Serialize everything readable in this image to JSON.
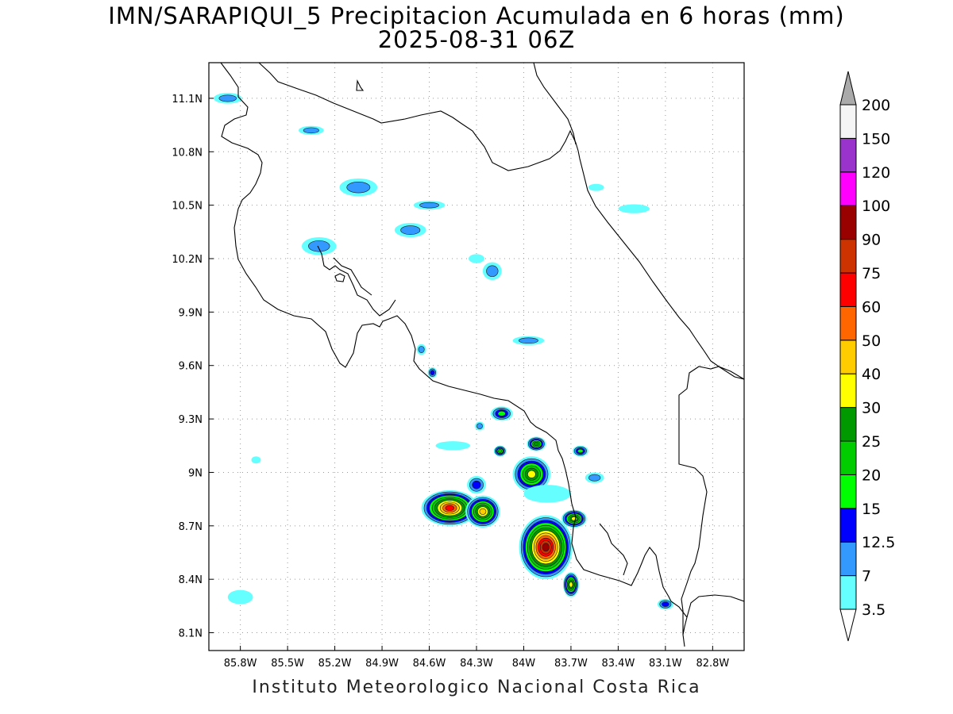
{
  "title": {
    "line1": "IMN/SARAPIQUI_5 Precipitacion Acumulada en 6 horas (mm)",
    "line2": "2025-08-31 06Z"
  },
  "credit": "Instituto Meteorologico Nacional Costa Rica",
  "map": {
    "lon_range": [
      -86.0,
      -82.6
    ],
    "lat_range": [
      8.0,
      11.3
    ],
    "grid": "dotted",
    "x_ticks": [
      {
        "value": -85.8,
        "label": "85.8W"
      },
      {
        "value": -85.5,
        "label": "85.5W"
      },
      {
        "value": -85.2,
        "label": "85.2W"
      },
      {
        "value": -84.9,
        "label": "84.9W"
      },
      {
        "value": -84.6,
        "label": "84.6W"
      },
      {
        "value": -84.3,
        "label": "84.3W"
      },
      {
        "value": -84.0,
        "label": "84W"
      },
      {
        "value": -83.7,
        "label": "83.7W"
      },
      {
        "value": -83.4,
        "label": "83.4W"
      },
      {
        "value": -83.1,
        "label": "83.1W"
      },
      {
        "value": -82.8,
        "label": "82.8W"
      }
    ],
    "y_ticks": [
      {
        "value": 11.1,
        "label": "11.1N"
      },
      {
        "value": 10.8,
        "label": "10.8N"
      },
      {
        "value": 10.5,
        "label": "10.5N"
      },
      {
        "value": 10.2,
        "label": "10.2N"
      },
      {
        "value": 9.9,
        "label": "9.9N"
      },
      {
        "value": 9.6,
        "label": "9.6N"
      },
      {
        "value": 9.3,
        "label": "9.3N"
      },
      {
        "value": 9.0,
        "label": "9N"
      },
      {
        "value": 8.7,
        "label": "8.7N"
      },
      {
        "value": 8.4,
        "label": "8.4N"
      },
      {
        "value": 8.1,
        "label": "8.1N"
      }
    ]
  },
  "colorbar": {
    "levels": [
      {
        "label": "3.5",
        "color": "#66ffff"
      },
      {
        "label": "7",
        "color": "#3399ff"
      },
      {
        "label": "12.5",
        "color": "#0000ff"
      },
      {
        "label": "15",
        "color": "#00ff00"
      },
      {
        "label": "20",
        "color": "#00cc00"
      },
      {
        "label": "25",
        "color": "#009900"
      },
      {
        "label": "30",
        "color": "#ffff00"
      },
      {
        "label": "40",
        "color": "#ffcc00"
      },
      {
        "label": "50",
        "color": "#ff6600"
      },
      {
        "label": "60",
        "color": "#ff0000"
      },
      {
        "label": "75",
        "color": "#cc3300"
      },
      {
        "label": "90",
        "color": "#990000"
      },
      {
        "label": "100",
        "color": "#ff00ff"
      },
      {
        "label": "120",
        "color": "#9933cc"
      },
      {
        "label": "150",
        "color": "#f5f5f5"
      },
      {
        "label": "200",
        "color": "#aaaaaa"
      }
    ]
  },
  "precip_areas": [
    {
      "lon": -85.88,
      "lat": 11.1,
      "rx": 0.09,
      "ry": 0.03,
      "mm": 7
    },
    {
      "lon": -85.35,
      "lat": 10.92,
      "rx": 0.08,
      "ry": 0.025,
      "mm": 7
    },
    {
      "lon": -85.05,
      "lat": 10.6,
      "rx": 0.12,
      "ry": 0.05,
      "mm": 7
    },
    {
      "lon": -84.6,
      "lat": 10.5,
      "rx": 0.1,
      "ry": 0.025,
      "mm": 7
    },
    {
      "lon": -84.72,
      "lat": 10.36,
      "rx": 0.1,
      "ry": 0.04,
      "mm": 7
    },
    {
      "lon": -85.3,
      "lat": 10.27,
      "rx": 0.11,
      "ry": 0.05,
      "mm": 7
    },
    {
      "lon": -84.3,
      "lat": 10.2,
      "rx": 0.05,
      "ry": 0.025,
      "mm": 3.5
    },
    {
      "lon": -84.2,
      "lat": 10.13,
      "rx": 0.06,
      "ry": 0.05,
      "mm": 7
    },
    {
      "lon": -83.97,
      "lat": 9.74,
      "rx": 0.1,
      "ry": 0.025,
      "mm": 7
    },
    {
      "lon": -83.54,
      "lat": 10.6,
      "rx": 0.05,
      "ry": 0.02,
      "mm": 3.5
    },
    {
      "lon": -83.3,
      "lat": 10.48,
      "rx": 0.1,
      "ry": 0.025,
      "mm": 3.5
    },
    {
      "lon": -84.14,
      "lat": 9.33,
      "rx": 0.07,
      "ry": 0.04,
      "mm": 15
    },
    {
      "lon": -84.28,
      "lat": 9.26,
      "rx": 0.03,
      "ry": 0.025,
      "mm": 7
    },
    {
      "lon": -84.15,
      "lat": 9.12,
      "rx": 0.04,
      "ry": 0.03,
      "mm": 20
    },
    {
      "lon": -84.45,
      "lat": 9.15,
      "rx": 0.11,
      "ry": 0.025,
      "mm": 3.5
    },
    {
      "lon": -83.92,
      "lat": 9.16,
      "rx": 0.06,
      "ry": 0.04,
      "mm": 25
    },
    {
      "lon": -83.64,
      "lat": 9.12,
      "rx": 0.05,
      "ry": 0.03,
      "mm": 15
    },
    {
      "lon": -83.95,
      "lat": 8.99,
      "rx": 0.12,
      "ry": 0.1,
      "mm": 30
    },
    {
      "lon": -84.47,
      "lat": 8.8,
      "rx": 0.18,
      "ry": 0.1,
      "mm": 60
    },
    {
      "lon": -84.26,
      "lat": 8.78,
      "rx": 0.11,
      "ry": 0.09,
      "mm": 40
    },
    {
      "lon": -84.3,
      "lat": 8.93,
      "rx": 0.06,
      "ry": 0.05,
      "mm": 12.5
    },
    {
      "lon": -83.86,
      "lat": 8.58,
      "rx": 0.17,
      "ry": 0.18,
      "mm": 90
    },
    {
      "lon": -83.7,
      "lat": 8.37,
      "rx": 0.05,
      "ry": 0.07,
      "mm": 30
    },
    {
      "lon": -83.68,
      "lat": 8.74,
      "rx": 0.08,
      "ry": 0.05,
      "mm": 30
    },
    {
      "lon": -83.85,
      "lat": 8.88,
      "rx": 0.15,
      "ry": 0.05,
      "mm": 3.5
    },
    {
      "lon": -83.55,
      "lat": 8.97,
      "rx": 0.06,
      "ry": 0.03,
      "mm": 7
    },
    {
      "lon": -85.8,
      "lat": 8.3,
      "rx": 0.08,
      "ry": 0.04,
      "mm": 3.5
    },
    {
      "lon": -83.1,
      "lat": 8.26,
      "rx": 0.05,
      "ry": 0.03,
      "mm": 12.5
    },
    {
      "lon": -85.7,
      "lat": 9.07,
      "rx": 0.03,
      "ry": 0.02,
      "mm": 3.5
    },
    {
      "lon": -84.65,
      "lat": 9.69,
      "rx": 0.03,
      "ry": 0.03,
      "mm": 7
    },
    {
      "lon": -84.58,
      "lat": 9.56,
      "rx": 0.03,
      "ry": 0.03,
      "mm": 12.5
    }
  ]
}
